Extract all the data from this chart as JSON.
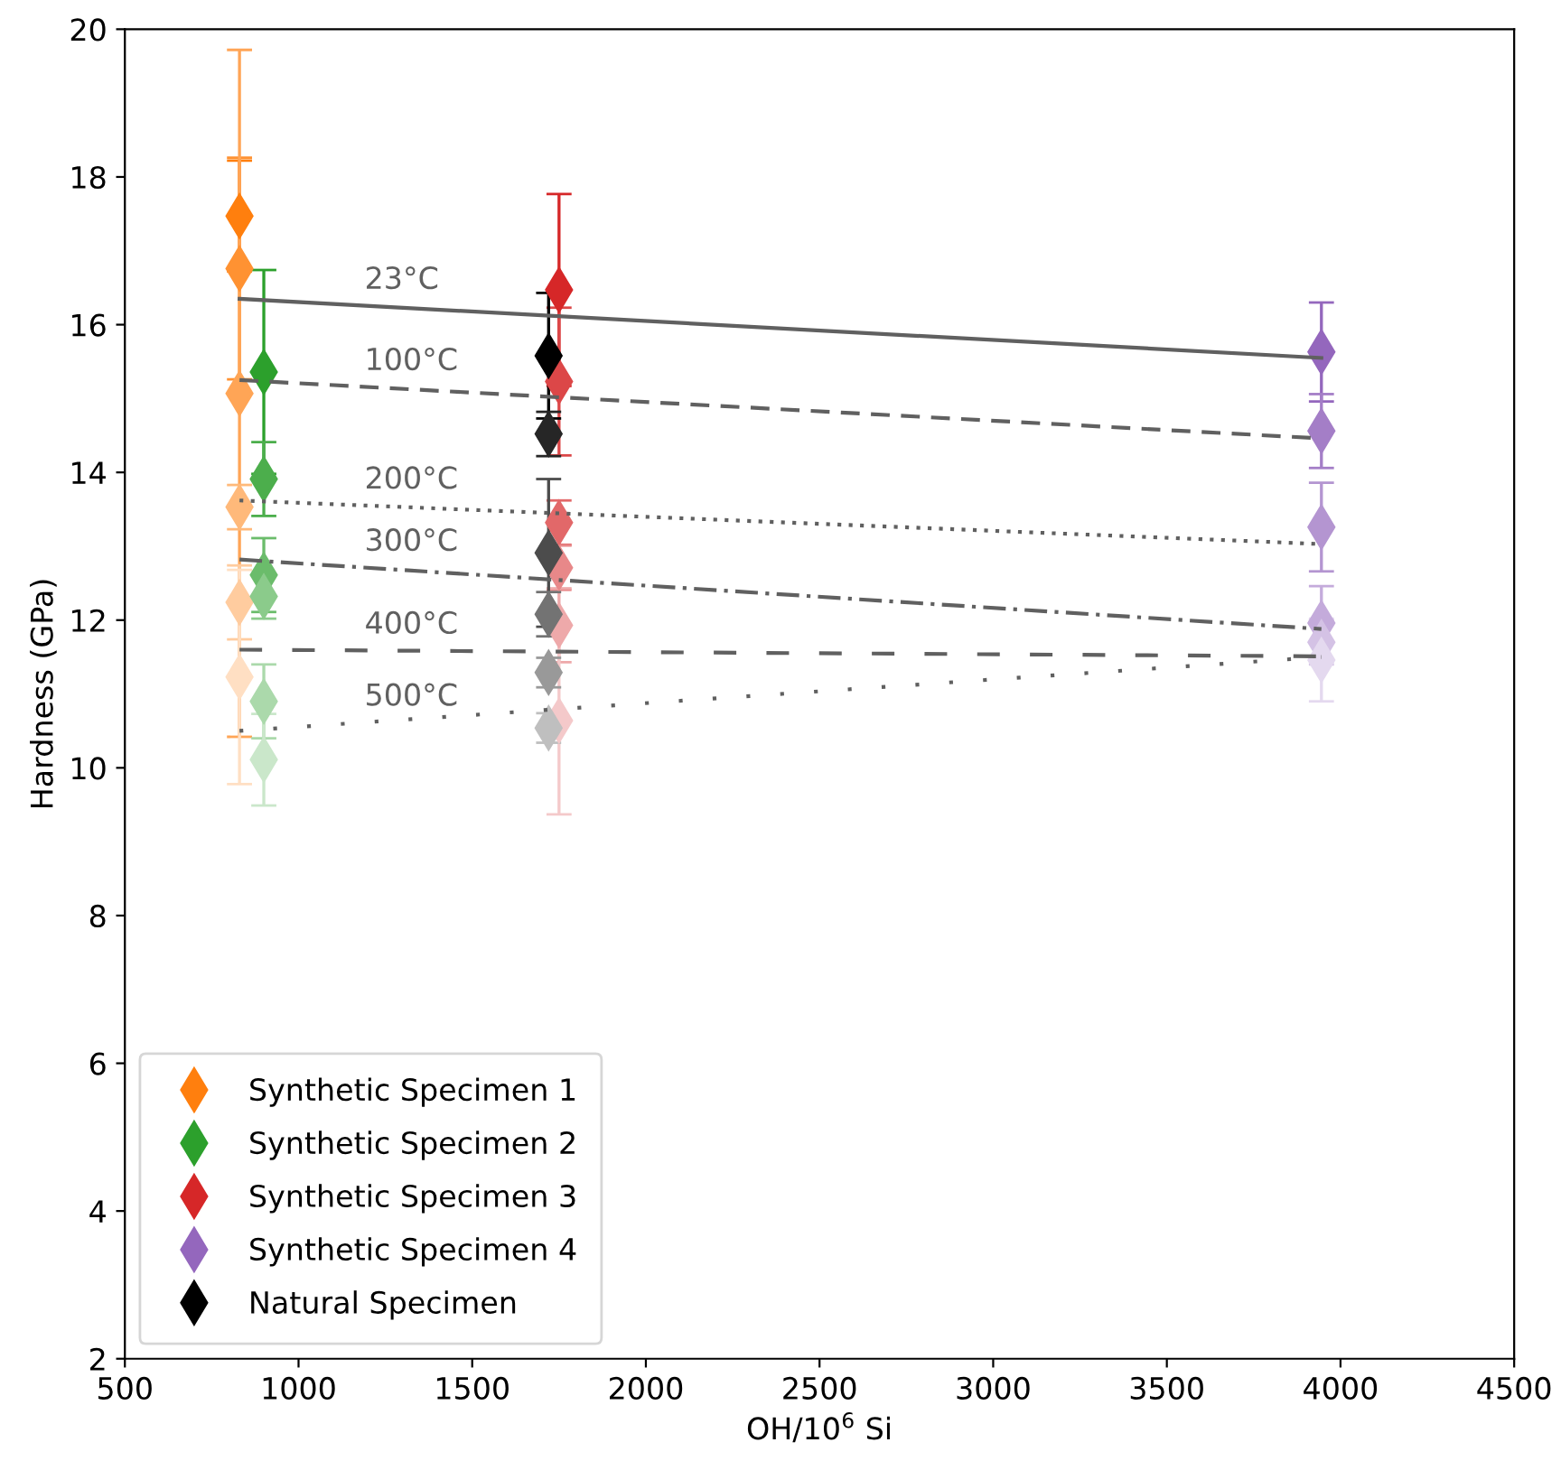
{
  "chart_data": {
    "type": "scatter",
    "xlabel": "OH/10$^{6}$ Si",
    "ylabel": "Hardness (GPa)",
    "xlim": [
      500,
      4500
    ],
    "xticks": [
      500,
      1000,
      1500,
      2000,
      2500,
      3000,
      3500,
      4000,
      4500
    ],
    "ylim": [
      2,
      20
    ],
    "yticks": [
      2,
      4,
      6,
      8,
      10,
      12,
      14,
      16,
      18,
      20
    ],
    "grid": false,
    "legend": "bottom left",
    "series": [
      {
        "name": "Synthetic Specimen 1",
        "marker": "diamond",
        "color": "#ff7f0e",
        "x": [
          830,
          830,
          830,
          830,
          830,
          830
        ],
        "values": [
          17.47,
          16.76,
          15.07,
          13.53,
          12.24,
          11.23
        ],
        "errors": [
          0.75,
          1.5,
          4.65,
          0.3,
          0.5,
          1.45
        ],
        "colors": [
          "#ff7f0e",
          "#ff9232",
          "#ffa556",
          "#ffb97a",
          "#ffcc9f",
          "#ffdfc3"
        ]
      },
      {
        "name": "Synthetic Specimen 2",
        "marker": "diamond",
        "color": "#2ca02c",
        "x": [
          900,
          900,
          900,
          900,
          900,
          900
        ],
        "values": [
          15.36,
          13.91,
          12.61,
          12.32,
          10.9,
          10.11
        ],
        "errors": [
          1.38,
          0.5,
          0.5,
          0.3,
          0.5,
          0.62
        ],
        "colors": [
          "#2ca02c",
          "#4cae4c",
          "#6bbc6b",
          "#8bcb8b",
          "#abd9ab",
          "#cae7ca"
        ]
      },
      {
        "name": "Synthetic Specimen 3",
        "marker": "diamond",
        "color": "#d62728",
        "x": [
          1750,
          1750,
          1750,
          1750,
          1750,
          1750
        ],
        "values": [
          16.47,
          15.23,
          13.32,
          12.71,
          11.93,
          10.64
        ],
        "errors": [
          1.3,
          1.0,
          0.3,
          0.3,
          0.5,
          1.27
        ],
        "colors": [
          "#d62728",
          "#dc4748",
          "#e26869",
          "#e88889",
          "#eea9aa",
          "#f4c9ca"
        ]
      },
      {
        "name": "Synthetic Specimen 4",
        "marker": "diamond",
        "color": "#9467bd",
        "x": [
          3945,
          3945,
          3945,
          3945,
          3945,
          3945
        ],
        "values": [
          15.63,
          14.56,
          13.26,
          11.96,
          11.7,
          11.46
        ],
        "errors": [
          0.67,
          0.5,
          0.6,
          0.5,
          0.3,
          0.56
        ],
        "colors": [
          "#9467bd",
          "#a47ec7",
          "#b495d1",
          "#c4abdb",
          "#d4c2e5",
          "#e4d9ef"
        ]
      },
      {
        "name": "Natural Specimen",
        "marker": "diamond",
        "color": "#000000",
        "x": [
          1720,
          1720,
          1720,
          1720,
          1720,
          1720
        ],
        "values": [
          15.58,
          14.52,
          12.91,
          12.08,
          11.29,
          10.54
        ],
        "errors": [
          0.85,
          0.3,
          1.0,
          0.3,
          0.2,
          0.2
        ],
        "colors": [
          "#000000",
          "#262626",
          "#4c4c4c",
          "#737373",
          "#999999",
          "#bfbfbf"
        ]
      },
      {
        "name": "23°C",
        "type": "line",
        "color": "#606060",
        "line_style": "solid",
        "x": [
          830,
          3945
        ],
        "values": [
          16.35,
          15.55
        ]
      },
      {
        "name": "100°C",
        "type": "line",
        "color": "#606060",
        "line_style": "dashed",
        "x": [
          830,
          3945
        ],
        "values": [
          15.25,
          14.46
        ]
      },
      {
        "name": "200°C",
        "type": "line",
        "color": "#606060",
        "line_style": "dotted",
        "x": [
          830,
          3945
        ],
        "values": [
          13.62,
          13.03
        ]
      },
      {
        "name": "300°C",
        "type": "line",
        "color": "#606060",
        "line_style": "dashdot",
        "x": [
          830,
          3945
        ],
        "values": [
          12.82,
          11.88
        ]
      },
      {
        "name": "400°C",
        "type": "line",
        "color": "#606060",
        "line_style": "loosely dashed",
        "x": [
          830,
          3945
        ],
        "values": [
          11.6,
          11.51
        ]
      },
      {
        "name": "500°C",
        "type": "line",
        "color": "#606060",
        "line_style": "loosely dotted",
        "x": [
          830,
          3945
        ],
        "values": [
          10.5,
          11.5
        ]
      }
    ]
  }
}
